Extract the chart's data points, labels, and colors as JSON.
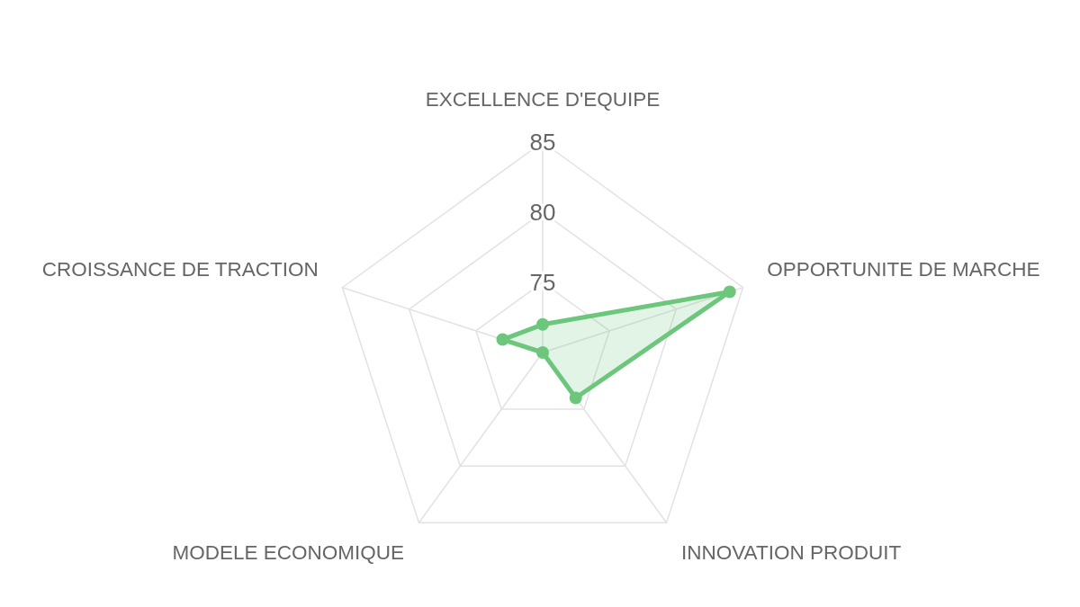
{
  "chart_data": {
    "type": "radar",
    "categories": [
      "EXCELLENCE D'EQUIPE",
      "OPPORTUNITE DE MARCHE",
      "INNOVATION PRODUIT",
      "MODELE ECONOMIQUE",
      "CROISSANCE DE TRACTION"
    ],
    "series": [
      {
        "color": "#6cc67c",
        "values": [
          72,
          84,
          74,
          70,
          73
        ]
      }
    ],
    "ylim": [
      70,
      85
    ],
    "yticks": [
      75,
      80,
      85
    ],
    "grid": true,
    "marker": "circle",
    "line_style": "solid"
  }
}
